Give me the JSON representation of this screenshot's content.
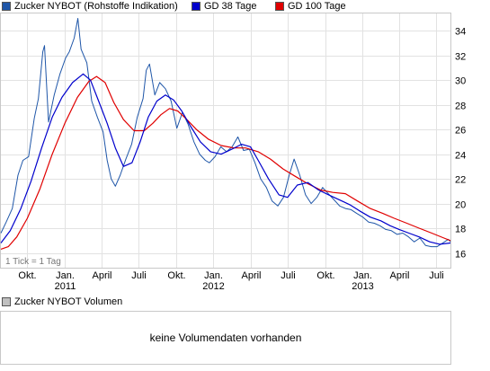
{
  "legend": [
    {
      "label": "Zucker NYBOT (Rohstoffe Indikation)",
      "color": "#1f56a8"
    },
    {
      "label": "GD 38 Tage",
      "color": "#0000cc"
    },
    {
      "label": "GD 100 Tage",
      "color": "#e00000"
    }
  ],
  "chart_data": {
    "type": "line",
    "title": "",
    "xlabel": "",
    "ylabel": "",
    "ylim": [
      14.8,
      35.4
    ],
    "y_ticks": [
      16,
      18,
      20,
      22,
      24,
      26,
      28,
      30,
      32,
      34
    ],
    "grid": true,
    "tick_note": "1 Tick = 1 Tag",
    "x_ticks": [
      {
        "label": "Okt.",
        "year": "",
        "date": "2010-10-01"
      },
      {
        "label": "Jan.",
        "year": "2011",
        "date": "2011-01-01"
      },
      {
        "label": "April",
        "year": "",
        "date": "2011-04-01"
      },
      {
        "label": "Juli",
        "year": "",
        "date": "2011-07-01"
      },
      {
        "label": "Okt.",
        "year": "",
        "date": "2011-10-01"
      },
      {
        "label": "Jan.",
        "year": "2012",
        "date": "2012-01-01"
      },
      {
        "label": "April",
        "year": "",
        "date": "2012-04-01"
      },
      {
        "label": "Juli",
        "year": "",
        "date": "2012-07-01"
      },
      {
        "label": "Okt.",
        "year": "",
        "date": "2012-10-01"
      },
      {
        "label": "Jan.",
        "year": "2013",
        "date": "2013-01-01"
      },
      {
        "label": "April",
        "year": "",
        "date": "2013-04-01"
      },
      {
        "label": "Juli",
        "year": "",
        "date": "2013-07-01"
      }
    ],
    "x_range": [
      "2010-07-28",
      "2013-08-05"
    ],
    "series": [
      {
        "name": "Zucker NYBOT (Rohstoffe Indikation)",
        "color": "#1f56a8",
        "points": [
          [
            "2010-07-28",
            17.6
          ],
          [
            "2010-08-10",
            18.5
          ],
          [
            "2010-08-25",
            19.6
          ],
          [
            "2010-09-08",
            22.3
          ],
          [
            "2010-09-20",
            23.5
          ],
          [
            "2010-10-04",
            23.8
          ],
          [
            "2010-10-18",
            26.9
          ],
          [
            "2010-10-28",
            28.5
          ],
          [
            "2010-11-08",
            32.3
          ],
          [
            "2010-11-12",
            32.8
          ],
          [
            "2010-11-22",
            26.6
          ],
          [
            "2010-12-06",
            28.8
          ],
          [
            "2010-12-20",
            30.5
          ],
          [
            "2011-01-03",
            31.8
          ],
          [
            "2011-01-12",
            32.3
          ],
          [
            "2011-01-24",
            33.4
          ],
          [
            "2011-02-02",
            35.0
          ],
          [
            "2011-02-10",
            32.5
          ],
          [
            "2011-02-24",
            31.4
          ],
          [
            "2011-03-08",
            28.3
          ],
          [
            "2011-03-22",
            27.0
          ],
          [
            "2011-04-05",
            25.8
          ],
          [
            "2011-04-15",
            23.5
          ],
          [
            "2011-04-25",
            22.0
          ],
          [
            "2011-05-05",
            21.4
          ],
          [
            "2011-05-17",
            22.3
          ],
          [
            "2011-05-31",
            23.6
          ],
          [
            "2011-06-14",
            24.8
          ],
          [
            "2011-06-28",
            27.0
          ],
          [
            "2011-07-12",
            28.5
          ],
          [
            "2011-07-20",
            30.8
          ],
          [
            "2011-07-28",
            31.3
          ],
          [
            "2011-08-10",
            28.8
          ],
          [
            "2011-08-22",
            29.8
          ],
          [
            "2011-09-05",
            29.3
          ],
          [
            "2011-09-19",
            28.3
          ],
          [
            "2011-10-03",
            26.1
          ],
          [
            "2011-10-17",
            27.4
          ],
          [
            "2011-10-31",
            26.4
          ],
          [
            "2011-11-14",
            25.0
          ],
          [
            "2011-11-28",
            24.0
          ],
          [
            "2011-12-12",
            23.5
          ],
          [
            "2011-12-22",
            23.3
          ],
          [
            "2012-01-05",
            23.8
          ],
          [
            "2012-01-19",
            24.6
          ],
          [
            "2012-02-02",
            24.2
          ],
          [
            "2012-02-16",
            24.6
          ],
          [
            "2012-03-01",
            25.4
          ],
          [
            "2012-03-15",
            24.3
          ],
          [
            "2012-03-29",
            24.4
          ],
          [
            "2012-04-12",
            23.3
          ],
          [
            "2012-04-26",
            22.0
          ],
          [
            "2012-05-10",
            21.3
          ],
          [
            "2012-05-24",
            20.2
          ],
          [
            "2012-06-07",
            19.8
          ],
          [
            "2012-06-21",
            20.5
          ],
          [
            "2012-07-05",
            22.3
          ],
          [
            "2012-07-17",
            23.6
          ],
          [
            "2012-07-31",
            22.3
          ],
          [
            "2012-08-14",
            20.7
          ],
          [
            "2012-08-28",
            20.0
          ],
          [
            "2012-09-11",
            20.5
          ],
          [
            "2012-09-25",
            21.3
          ],
          [
            "2012-10-09",
            20.8
          ],
          [
            "2012-10-23",
            20.3
          ],
          [
            "2012-11-06",
            19.8
          ],
          [
            "2012-11-20",
            19.6
          ],
          [
            "2012-12-04",
            19.5
          ],
          [
            "2012-12-18",
            19.2
          ],
          [
            "2013-01-02",
            18.9
          ],
          [
            "2013-01-16",
            18.5
          ],
          [
            "2013-01-30",
            18.4
          ],
          [
            "2013-02-13",
            18.2
          ],
          [
            "2013-02-27",
            17.9
          ],
          [
            "2013-03-13",
            17.8
          ],
          [
            "2013-03-27",
            17.5
          ],
          [
            "2013-04-10",
            17.6
          ],
          [
            "2013-04-24",
            17.3
          ],
          [
            "2013-05-08",
            16.9
          ],
          [
            "2013-05-22",
            17.2
          ],
          [
            "2013-06-05",
            16.6
          ],
          [
            "2013-06-19",
            16.5
          ],
          [
            "2013-07-03",
            16.5
          ],
          [
            "2013-07-17",
            16.8
          ],
          [
            "2013-07-31",
            17.1
          ],
          [
            "2013-08-05",
            16.9
          ]
        ]
      },
      {
        "name": "GD 38 Tage",
        "color": "#0000cc",
        "points": [
          [
            "2010-07-28",
            16.8
          ],
          [
            "2010-08-20",
            17.8
          ],
          [
            "2010-09-15",
            19.6
          ],
          [
            "2010-10-10",
            21.8
          ],
          [
            "2010-11-05",
            24.5
          ],
          [
            "2010-12-01",
            27.0
          ],
          [
            "2010-12-25",
            28.6
          ],
          [
            "2011-01-20",
            29.8
          ],
          [
            "2011-02-15",
            30.5
          ],
          [
            "2011-03-05",
            30.0
          ],
          [
            "2011-03-25",
            28.3
          ],
          [
            "2011-04-15",
            26.5
          ],
          [
            "2011-05-05",
            24.5
          ],
          [
            "2011-05-25",
            23.0
          ],
          [
            "2011-06-15",
            23.3
          ],
          [
            "2011-07-05",
            25.0
          ],
          [
            "2011-07-25",
            27.0
          ],
          [
            "2011-08-15",
            28.3
          ],
          [
            "2011-09-05",
            28.8
          ],
          [
            "2011-09-25",
            28.4
          ],
          [
            "2011-10-15",
            27.5
          ],
          [
            "2011-11-05",
            26.3
          ],
          [
            "2011-11-30",
            25.0
          ],
          [
            "2011-12-25",
            24.2
          ],
          [
            "2012-01-20",
            24.0
          ],
          [
            "2012-02-15",
            24.4
          ],
          [
            "2012-03-10",
            24.8
          ],
          [
            "2012-04-01",
            24.6
          ],
          [
            "2012-04-20",
            23.5
          ],
          [
            "2012-05-15",
            22.0
          ],
          [
            "2012-06-10",
            20.7
          ],
          [
            "2012-07-01",
            20.5
          ],
          [
            "2012-07-25",
            21.5
          ],
          [
            "2012-08-20",
            21.7
          ],
          [
            "2012-09-15",
            21.1
          ],
          [
            "2012-10-10",
            20.7
          ],
          [
            "2012-11-05",
            20.3
          ],
          [
            "2012-12-01",
            19.9
          ],
          [
            "2012-12-25",
            19.4
          ],
          [
            "2013-01-20",
            18.9
          ],
          [
            "2013-02-15",
            18.6
          ],
          [
            "2013-03-10",
            18.2
          ],
          [
            "2013-04-01",
            17.9
          ],
          [
            "2013-04-25",
            17.6
          ],
          [
            "2013-05-20",
            17.3
          ],
          [
            "2013-06-15",
            16.9
          ],
          [
            "2013-07-10",
            16.7
          ],
          [
            "2013-08-05",
            16.8
          ]
        ]
      },
      {
        "name": "GD 100 Tage",
        "color": "#e00000",
        "points": [
          [
            "2010-07-28",
            16.3
          ],
          [
            "2010-08-15",
            16.5
          ],
          [
            "2010-09-05",
            17.3
          ],
          [
            "2010-10-01",
            18.8
          ],
          [
            "2010-11-01",
            21.2
          ],
          [
            "2010-12-01",
            24.0
          ],
          [
            "2011-01-01",
            26.5
          ],
          [
            "2011-02-01",
            28.6
          ],
          [
            "2011-03-01",
            29.9
          ],
          [
            "2011-03-20",
            30.3
          ],
          [
            "2011-04-10",
            29.8
          ],
          [
            "2011-05-01",
            28.2
          ],
          [
            "2011-05-25",
            26.8
          ],
          [
            "2011-06-20",
            25.9
          ],
          [
            "2011-07-15",
            25.9
          ],
          [
            "2011-08-05",
            26.5
          ],
          [
            "2011-08-25",
            27.2
          ],
          [
            "2011-09-15",
            27.7
          ],
          [
            "2011-10-05",
            27.5
          ],
          [
            "2011-10-25",
            26.9
          ],
          [
            "2011-11-20",
            26.0
          ],
          [
            "2011-12-20",
            25.2
          ],
          [
            "2012-01-20",
            24.7
          ],
          [
            "2012-02-20",
            24.5
          ],
          [
            "2012-03-20",
            24.5
          ],
          [
            "2012-04-20",
            24.2
          ],
          [
            "2012-05-20",
            23.6
          ],
          [
            "2012-06-20",
            22.8
          ],
          [
            "2012-07-20",
            22.2
          ],
          [
            "2012-08-20",
            21.6
          ],
          [
            "2012-09-20",
            21.1
          ],
          [
            "2012-10-20",
            20.9
          ],
          [
            "2012-11-20",
            20.8
          ],
          [
            "2012-12-20",
            20.2
          ],
          [
            "2013-01-20",
            19.6
          ],
          [
            "2013-02-20",
            19.2
          ],
          [
            "2013-03-20",
            18.8
          ],
          [
            "2013-04-20",
            18.4
          ],
          [
            "2013-05-20",
            18.0
          ],
          [
            "2013-06-20",
            17.6
          ],
          [
            "2013-07-20",
            17.2
          ],
          [
            "2013-08-05",
            17.0
          ]
        ]
      }
    ]
  },
  "volume": {
    "legend_label": "Zucker NYBOT Volumen",
    "legend_color": "#c0c0c0",
    "message": "keine Volumendaten vorhanden"
  }
}
